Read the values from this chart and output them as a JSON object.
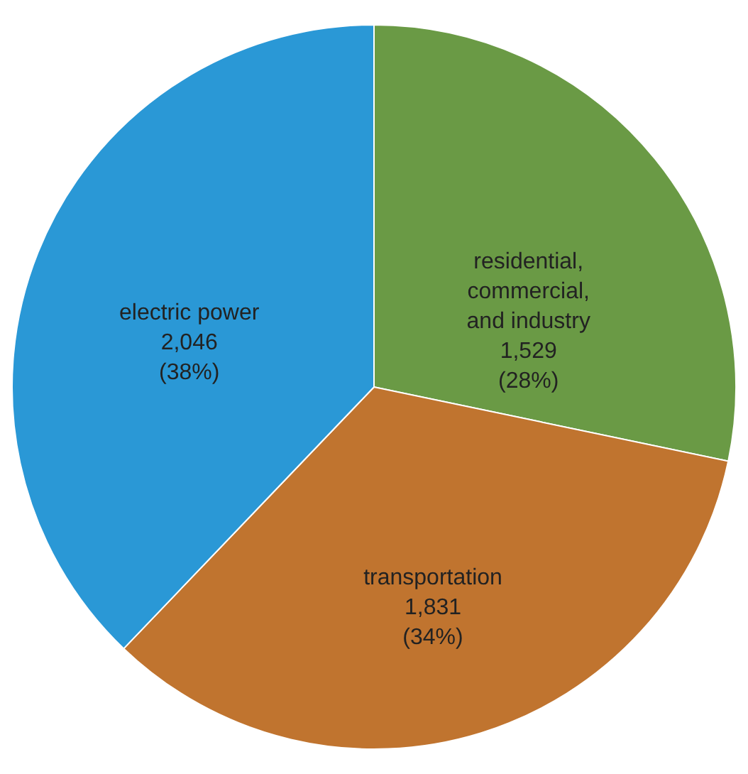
{
  "chart_data": {
    "type": "pie",
    "categories": [
      "residential, commercial, and industry",
      "transportation",
      "electric power"
    ],
    "values": [
      1529,
      1831,
      2046
    ],
    "colors": [
      "#6a9a45",
      "#c0742f",
      "#2a98d6"
    ],
    "value_labels": [
      "1,529 (28%)",
      "1,831 (34%)",
      "2,046 (38%)"
    ]
  }
}
